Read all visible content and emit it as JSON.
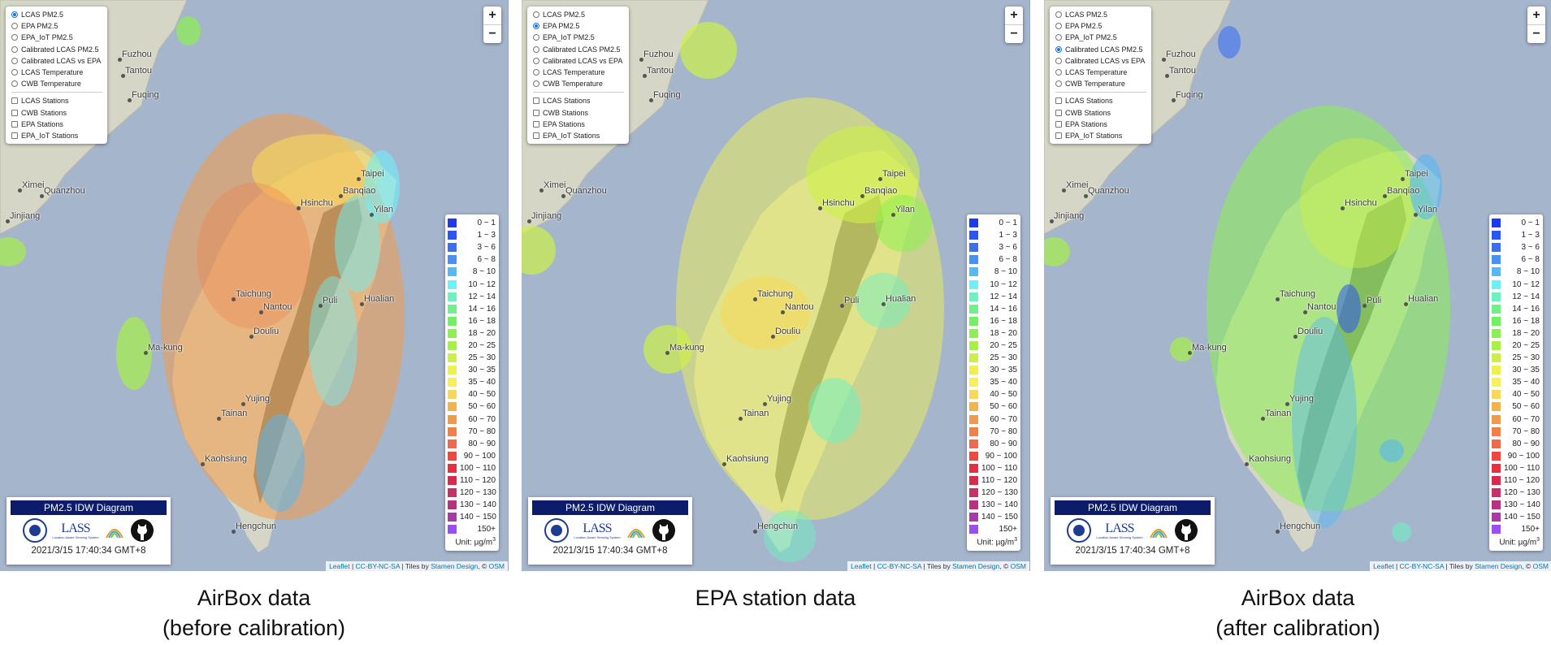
{
  "layer_options": [
    "LCAS PM2.5",
    "EPA PM2.5",
    "EPA_IoT PM2.5",
    "Calibrated LCAS PM2.5",
    "Calibrated LCAS vs EPA",
    "LCAS Temperature",
    "CWB Temperature"
  ],
  "station_options": [
    "LCAS Stations",
    "CWB Stations",
    "EPA Stations",
    "EPA_IoT Stations"
  ],
  "zoom": {
    "in_label": "+",
    "out_label": "−"
  },
  "legend": {
    "items": [
      {
        "label": "0 ~   1",
        "color": "#1a3bf0"
      },
      {
        "label": "1 ~   3",
        "color": "#2a55f0"
      },
      {
        "label": "3 ~   6",
        "color": "#3a6ff0"
      },
      {
        "label": "6 ~   8",
        "color": "#4a8ff2"
      },
      {
        "label": "8 ~  10",
        "color": "#56b8f4"
      },
      {
        "label": "10 ~  12",
        "color": "#6ef0f8"
      },
      {
        "label": "12 ~  14",
        "color": "#6ff0c0"
      },
      {
        "label": "14 ~  16",
        "color": "#6ef08a"
      },
      {
        "label": "16 ~  18",
        "color": "#72f060"
      },
      {
        "label": "18 ~  20",
        "color": "#8cf050"
      },
      {
        "label": "20 ~  25",
        "color": "#a8f048"
      },
      {
        "label": "25 ~  30",
        "color": "#cdf048"
      },
      {
        "label": "30 ~  35",
        "color": "#eef050"
      },
      {
        "label": "35 ~  40",
        "color": "#f8f058"
      },
      {
        "label": "40 ~  50",
        "color": "#f8d85a"
      },
      {
        "label": "50 ~  60",
        "color": "#f5b24a"
      },
      {
        "label": "60 ~  70",
        "color": "#f39a4a"
      },
      {
        "label": "70 ~  80",
        "color": "#f0804a"
      },
      {
        "label": "80 ~  90",
        "color": "#ee6a4a"
      },
      {
        "label": "90 ~ 100",
        "color": "#ec4a40"
      },
      {
        "label": "100 ~ 110",
        "color": "#e63040"
      },
      {
        "label": "110 ~ 120",
        "color": "#d82a4a"
      },
      {
        "label": "120 ~ 130",
        "color": "#c8306a"
      },
      {
        "label": "130 ~ 140",
        "color": "#b83080"
      },
      {
        "label": "140 ~ 150",
        "color": "#a83aa8"
      },
      {
        "label": "150+",
        "color": "#9a4ef0"
      }
    ],
    "unit_prefix": "Unit: µg/m",
    "unit_sup": "3"
  },
  "infobox": {
    "title": "PM2.5 IDW Diagram",
    "lass_text": "LASS",
    "lass_sub": "Location Aware Sensing System",
    "timestamp": "2021/3/15 17:40:34 GMT+8"
  },
  "attribution": {
    "leaflet": "Leaflet",
    "license": "CC-BY-NC-SA",
    "tiles_prefix": "| Tiles by",
    "stamen": "Stamen Design",
    "osm_prefix": ", ©",
    "osm": "OSM"
  },
  "places": [
    "Fuzhou",
    "Tantou",
    "Fuqing",
    "Ximei",
    "Quanzhou",
    "Jinjiang",
    "Taipei",
    "Banqiao",
    "Hsinchu",
    "Yilan",
    "Taichung",
    "Nantou",
    "Puli",
    "Hualian",
    "Douliu",
    "Ma-kung",
    "Yujing",
    "Tainan",
    "Kaohsiung",
    "Hengchun"
  ],
  "panels": [
    {
      "selected_layer": 0,
      "caption_line1": "AirBox data",
      "caption_line2": "(before calibration)"
    },
    {
      "selected_layer": 1,
      "caption_line1": "EPA station data",
      "caption_line2": ""
    },
    {
      "selected_layer": 3,
      "caption_line1": "AirBox data",
      "caption_line2": "(after calibration)"
    }
  ],
  "colors": {
    "sea": "#a5b5cc",
    "land": "#d5d6c6",
    "mountain": "#6f7464",
    "header_bar": "#0d1b6b"
  }
}
